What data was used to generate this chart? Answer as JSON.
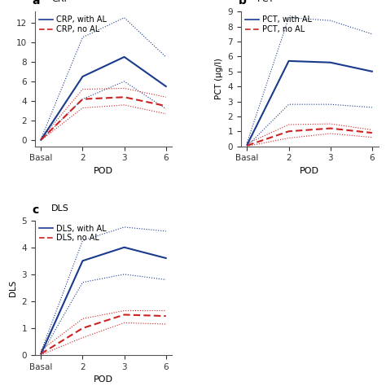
{
  "panels": [
    {
      "label": "a",
      "title": "CRP",
      "ylabel": "",
      "xlabel": "POD",
      "xtick_labels": [
        "Basal",
        "2",
        "3",
        "6"
      ],
      "xtick_positions": [
        0,
        1,
        2,
        3
      ],
      "blue_mean": [
        0.05,
        6.5,
        8.5,
        5.5
      ],
      "blue_upper": [
        0.15,
        10.5,
        12.5,
        8.5
      ],
      "blue_lower": [
        0.02,
        4.2,
        6.0,
        3.2
      ],
      "red_mean": [
        0.05,
        4.2,
        4.4,
        3.5
      ],
      "red_upper": [
        0.12,
        5.2,
        5.3,
        4.4
      ],
      "red_lower": [
        0.01,
        3.3,
        3.6,
        2.7
      ],
      "ylim": [
        null,
        null
      ],
      "yticks": null,
      "legend_blue": "CRP, with AL",
      "legend_red": "CRP, no AL"
    },
    {
      "label": "b",
      "title": "PCT",
      "ylabel": "PCT (µg/l)",
      "xlabel": "POD",
      "xtick_labels": [
        "Basal",
        "2",
        "3",
        "6"
      ],
      "xtick_positions": [
        0,
        1,
        2,
        3
      ],
      "blue_mean": [
        0.1,
        5.7,
        5.6,
        5.0
      ],
      "blue_upper": [
        0.25,
        8.6,
        8.4,
        7.5
      ],
      "blue_lower": [
        0.02,
        2.8,
        2.8,
        2.6
      ],
      "red_mean": [
        0.05,
        1.0,
        1.2,
        0.9
      ],
      "red_upper": [
        0.18,
        1.45,
        1.5,
        1.1
      ],
      "red_lower": [
        0.01,
        0.55,
        0.85,
        0.6
      ],
      "ylim": [
        0,
        9
      ],
      "yticks": [
        0,
        1,
        2,
        3,
        4,
        5,
        6,
        7,
        8,
        9
      ],
      "legend_blue": "PCT, with AL",
      "legend_red": "PCT, no AL"
    },
    {
      "label": "c",
      "title": "DLS",
      "ylabel": "DLS",
      "xlabel": "POD",
      "xtick_labels": [
        "Basal",
        "2",
        "3",
        "6"
      ],
      "xtick_positions": [
        0,
        1,
        2,
        3
      ],
      "blue_mean": [
        0.05,
        3.5,
        4.0,
        3.6
      ],
      "blue_upper": [
        0.12,
        4.25,
        4.75,
        4.6
      ],
      "blue_lower": [
        0.01,
        2.7,
        3.0,
        2.8
      ],
      "red_mean": [
        0.05,
        1.0,
        1.5,
        1.45
      ],
      "red_upper": [
        0.18,
        1.35,
        1.65,
        1.65
      ],
      "red_lower": [
        0.01,
        0.65,
        1.2,
        1.15
      ],
      "ylim": [
        0,
        5
      ],
      "yticks": [
        0,
        1,
        2,
        3,
        4,
        5
      ],
      "legend_blue": "DLS, with AL",
      "legend_red": "DLS, no AL"
    }
  ],
  "blue_color": "#1a3a8c",
  "red_color": "#cc2222",
  "bg_color": "#ffffff",
  "font_size": 7.5,
  "label_fontsize": 9,
  "title_fontsize": 8
}
